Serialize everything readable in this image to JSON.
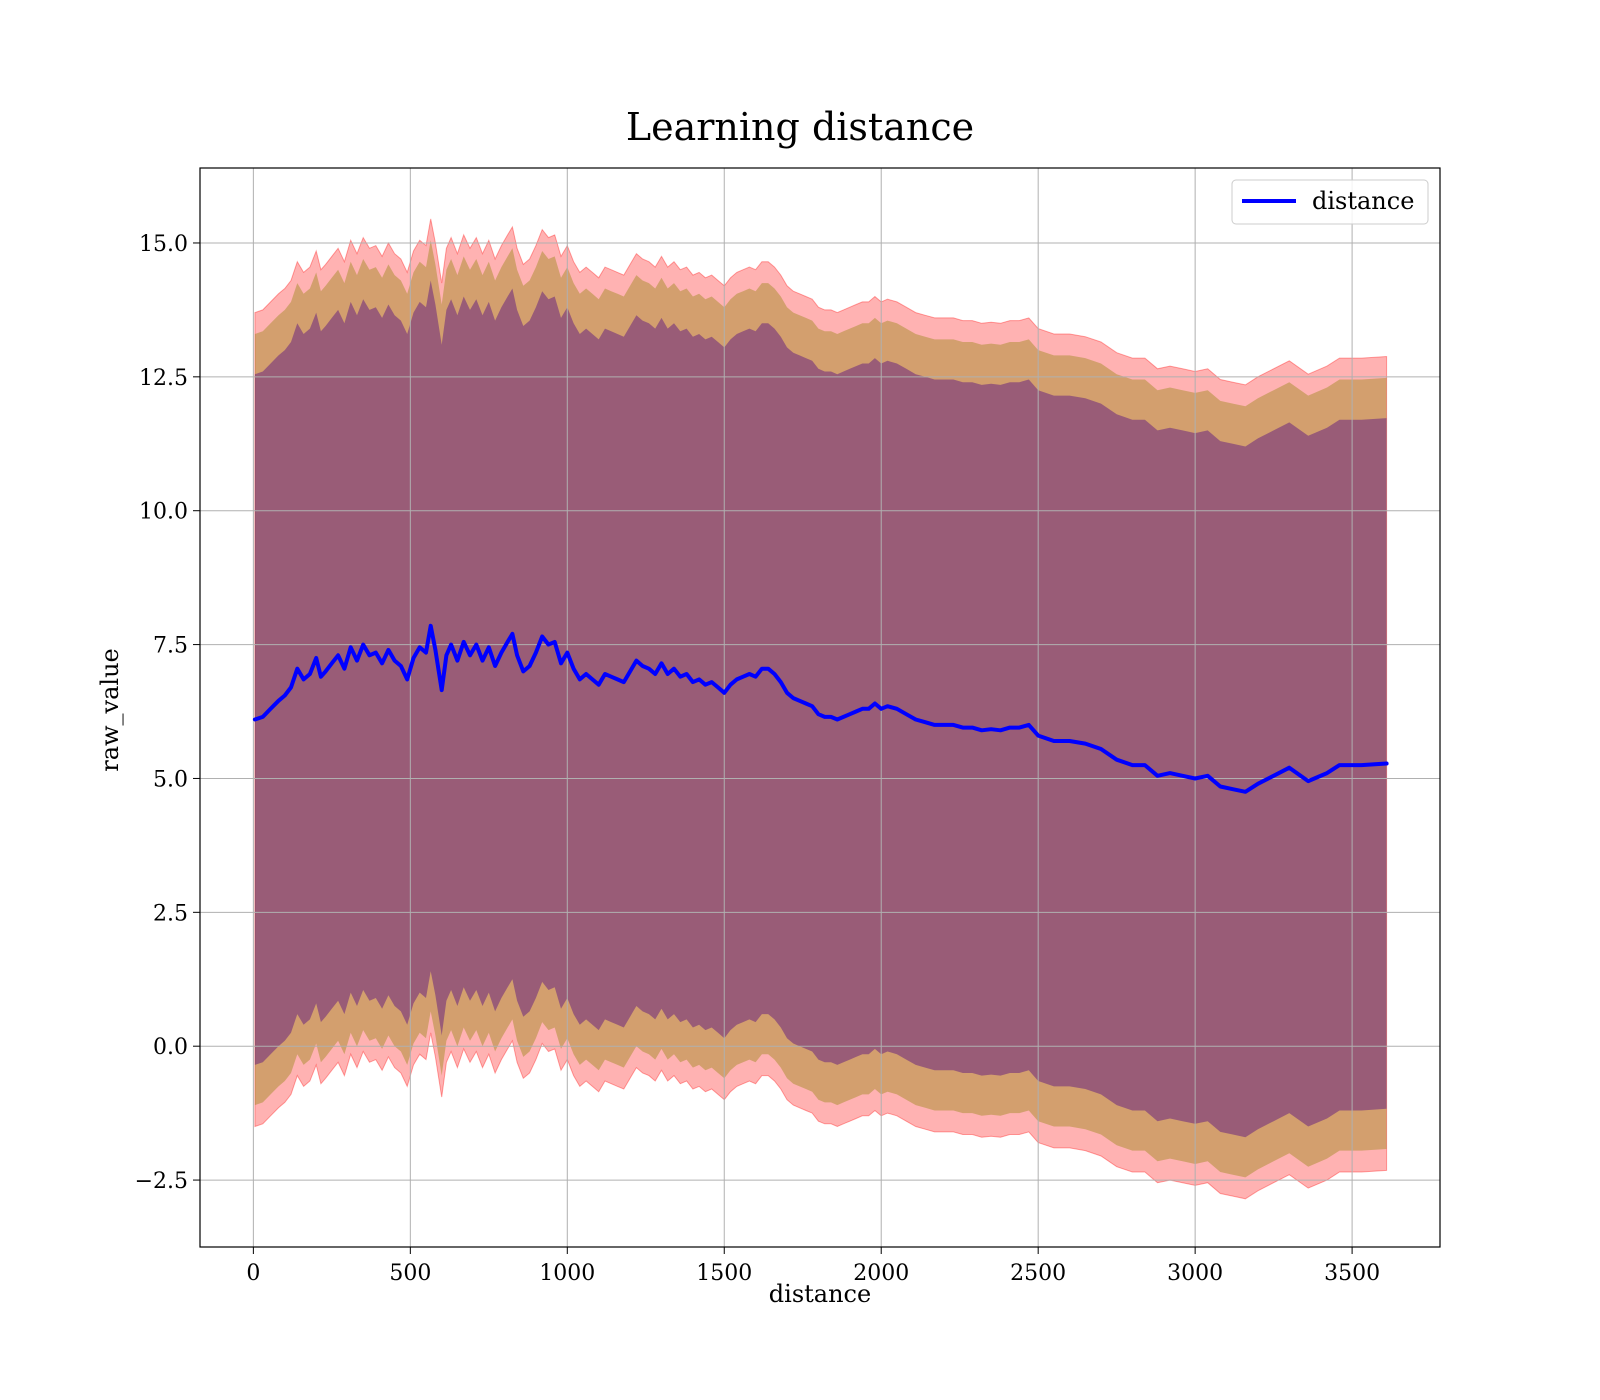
{
  "chart_data": {
    "type": "line",
    "title": "Learning distance",
    "xlabel": "distance",
    "ylabel": "raw_value",
    "xlim": [
      -170,
      3780
    ],
    "ylim": [
      -3.75,
      16.4
    ],
    "x_ticks": [
      0,
      500,
      1000,
      1500,
      2000,
      2500,
      3000,
      3500
    ],
    "x_tick_labels": [
      "0",
      "500",
      "1000",
      "1500",
      "2000",
      "2500",
      "3000",
      "3500"
    ],
    "y_ticks": [
      -2.5,
      0.0,
      2.5,
      5.0,
      7.5,
      10.0,
      12.5,
      15.0
    ],
    "y_tick_labels": [
      "−2.5",
      "0.0",
      "2.5",
      "5.0",
      "7.5",
      "10.0",
      "12.5",
      "15.0"
    ],
    "grid": true,
    "legend": {
      "position": "top-right",
      "entries": [
        {
          "label": "distance",
          "color": "#0000ff"
        }
      ]
    },
    "band_colors": {
      "outer": "#ff0000",
      "middle": "#8b8000",
      "inner": "#4b0082"
    },
    "band_half_widths": {
      "outer": 7.6,
      "middle": 7.2,
      "inner": 6.45
    },
    "series": [
      {
        "name": "distance",
        "color": "#0000ff",
        "x": [
          5,
          30,
          55,
          80,
          100,
          120,
          140,
          160,
          180,
          200,
          215,
          230,
          250,
          270,
          290,
          310,
          330,
          350,
          370,
          390,
          410,
          430,
          450,
          470,
          490,
          510,
          530,
          550,
          565,
          580,
          600,
          615,
          630,
          650,
          670,
          690,
          710,
          730,
          750,
          770,
          790,
          810,
          825,
          840,
          860,
          880,
          900,
          920,
          940,
          960,
          980,
          1000,
          1020,
          1040,
          1060,
          1080,
          1100,
          1120,
          1140,
          1160,
          1180,
          1200,
          1220,
          1240,
          1260,
          1280,
          1300,
          1320,
          1340,
          1360,
          1380,
          1400,
          1420,
          1440,
          1460,
          1480,
          1500,
          1520,
          1540,
          1560,
          1580,
          1600,
          1620,
          1640,
          1660,
          1680,
          1700,
          1720,
          1740,
          1760,
          1780,
          1800,
          1820,
          1840,
          1860,
          1880,
          1900,
          1920,
          1940,
          1960,
          1980,
          2000,
          2020,
          2050,
          2080,
          2110,
          2140,
          2170,
          2200,
          2230,
          2260,
          2290,
          2320,
          2350,
          2380,
          2410,
          2440,
          2470,
          2500,
          2550,
          2600,
          2650,
          2700,
          2750,
          2800,
          2840,
          2880,
          2920,
          2960,
          3000,
          3040,
          3080,
          3120,
          3160,
          3200,
          3250,
          3300,
          3360,
          3420,
          3460,
          3530,
          3610
        ],
        "y": [
          6.1,
          6.15,
          6.3,
          6.45,
          6.55,
          6.7,
          7.05,
          6.85,
          6.95,
          7.25,
          6.9,
          7.0,
          7.15,
          7.3,
          7.05,
          7.45,
          7.2,
          7.5,
          7.3,
          7.35,
          7.15,
          7.4,
          7.2,
          7.1,
          6.85,
          7.25,
          7.45,
          7.35,
          7.85,
          7.4,
          6.65,
          7.3,
          7.5,
          7.2,
          7.55,
          7.3,
          7.5,
          7.2,
          7.45,
          7.1,
          7.35,
          7.55,
          7.7,
          7.3,
          7.0,
          7.1,
          7.35,
          7.65,
          7.5,
          7.55,
          7.15,
          7.35,
          7.05,
          6.85,
          6.95,
          6.85,
          6.75,
          6.95,
          6.9,
          6.85,
          6.8,
          7.0,
          7.2,
          7.1,
          7.05,
          6.95,
          7.15,
          6.95,
          7.05,
          6.9,
          6.95,
          6.8,
          6.85,
          6.75,
          6.8,
          6.7,
          6.6,
          6.75,
          6.85,
          6.9,
          6.95,
          6.9,
          7.05,
          7.05,
          6.95,
          6.8,
          6.6,
          6.5,
          6.45,
          6.4,
          6.35,
          6.2,
          6.15,
          6.15,
          6.1,
          6.15,
          6.2,
          6.25,
          6.3,
          6.3,
          6.4,
          6.3,
          6.35,
          6.3,
          6.2,
          6.1,
          6.05,
          6.0,
          6.0,
          6.0,
          5.95,
          5.95,
          5.9,
          5.92,
          5.9,
          5.95,
          5.95,
          6.0,
          5.8,
          5.7,
          5.7,
          5.65,
          5.55,
          5.35,
          5.25,
          5.25,
          5.05,
          5.1,
          5.05,
          5.0,
          5.05,
          4.85,
          4.8,
          4.75,
          4.9,
          5.05,
          5.2,
          4.95,
          5.1,
          5.25,
          5.25,
          5.28
        ]
      }
    ]
  }
}
